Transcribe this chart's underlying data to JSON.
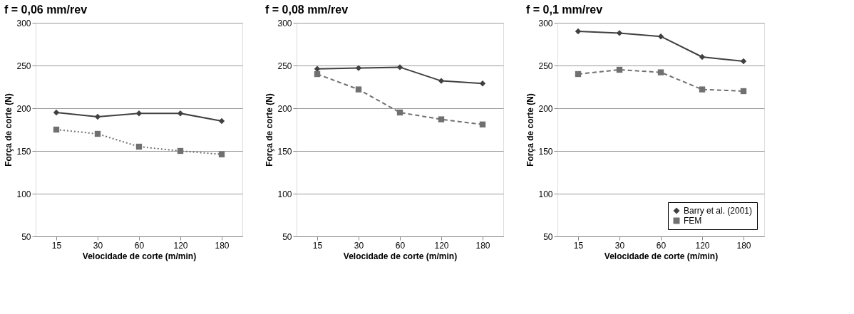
{
  "chart_data": [
    {
      "type": "line",
      "title": "f = 0,06 mm/rev",
      "xlabel": "Velocidade de corte (m/min)",
      "ylabel": "Força de corte (N)",
      "categories": [
        "15",
        "30",
        "60",
        "120",
        "180"
      ],
      "ylim": [
        50,
        300
      ],
      "yticks": [
        50,
        100,
        150,
        200,
        250,
        300
      ],
      "grid": "y",
      "legend": false,
      "series": [
        {
          "color": "#404040",
          "marker": "diamond",
          "line_style": "solid",
          "values": [
            195,
            190,
            194,
            194,
            185
          ]
        },
        {
          "color": "#707070",
          "marker": "square",
          "line_style": "dotted",
          "values": [
            175,
            170,
            155,
            150,
            146
          ]
        }
      ]
    },
    {
      "type": "line",
      "title": "f = 0,08 mm/rev",
      "xlabel": "Velocidade de corte (m/min)",
      "ylabel": "Força de corte (N)",
      "categories": [
        "15",
        "30",
        "60",
        "120",
        "180"
      ],
      "ylim": [
        50,
        300
      ],
      "yticks": [
        50,
        100,
        150,
        200,
        250,
        300
      ],
      "grid": "y",
      "legend": false,
      "series": [
        {
          "color": "#404040",
          "marker": "diamond",
          "line_style": "solid",
          "values": [
            246,
            247,
            248,
            232,
            229
          ]
        },
        {
          "color": "#707070",
          "marker": "square",
          "line_style": "dashed",
          "values": [
            240,
            222,
            195,
            187,
            181
          ]
        }
      ]
    },
    {
      "type": "line",
      "title": "f = 0,1 mm/rev",
      "xlabel": "Velocidade de corte (m/min)",
      "ylabel": "Força de corte (N)",
      "categories": [
        "15",
        "30",
        "60",
        "120",
        "180"
      ],
      "ylim": [
        50,
        300
      ],
      "yticks": [
        50,
        100,
        150,
        200,
        250,
        300
      ],
      "grid": "y",
      "legend": "bottom right",
      "series": [
        {
          "name": "Barry et al. (2001)",
          "color": "#404040",
          "marker": "diamond",
          "line_style": "solid",
          "values": [
            290,
            288,
            284,
            260,
            255
          ]
        },
        {
          "name": "FEM",
          "color": "#707070",
          "marker": "square",
          "line_style": "dashed",
          "values": [
            240,
            245,
            242,
            222,
            220
          ]
        }
      ]
    }
  ]
}
